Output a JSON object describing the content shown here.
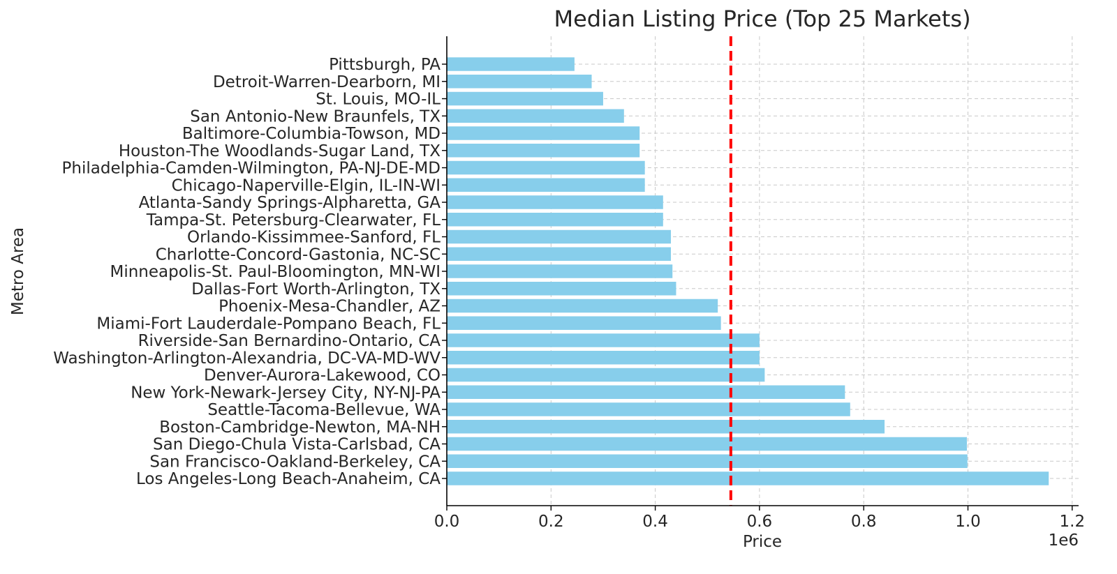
{
  "chart_data": {
    "type": "bar",
    "orientation": "horizontal",
    "title": "Median Listing Price (Top 25 Markets)",
    "xlabel": "Price",
    "ylabel": "Metro Area",
    "x_offset_label": "1e6",
    "xlim": [
      0,
      1.22
    ],
    "xticks": [
      "0.0",
      "0.2",
      "0.4",
      "0.6",
      "0.8",
      "1.0",
      "1.2"
    ],
    "grid": true,
    "bar_color": "#87CEEB",
    "reference_line": {
      "value": 0.545,
      "color": "#ff0000",
      "style": "dashed"
    },
    "categories": [
      "Los Angeles-Long Beach-Anaheim, CA",
      "San Francisco-Oakland-Berkeley, CA",
      "San Diego-Chula Vista-Carlsbad, CA",
      "Boston-Cambridge-Newton, MA-NH",
      "Seattle-Tacoma-Bellevue, WA",
      "New York-Newark-Jersey City, NY-NJ-PA",
      "Denver-Aurora-Lakewood, CO",
      "Washington-Arlington-Alexandria, DC-VA-MD-WV",
      "Riverside-San Bernardino-Ontario, CA",
      "Miami-Fort Lauderdale-Pompano Beach, FL",
      "Phoenix-Mesa-Chandler, AZ",
      "Dallas-Fort Worth-Arlington, TX",
      "Minneapolis-St. Paul-Bloomington, MN-WI",
      "Charlotte-Concord-Gastonia, NC-SC",
      "Orlando-Kissimmee-Sanford, FL",
      "Tampa-St. Petersburg-Clearwater, FL",
      "Atlanta-Sandy Springs-Alpharetta, GA",
      "Chicago-Naperville-Elgin, IL-IN-WI",
      "Philadelphia-Camden-Wilmington, PA-NJ-DE-MD",
      "Houston-The Woodlands-Sugar Land, TX",
      "Baltimore-Columbia-Towson, MD",
      "San Antonio-New Braunfels, TX",
      "St. Louis, MO-IL",
      "Detroit-Warren-Dearborn, MI",
      "Pittsburgh, PA"
    ],
    "values": [
      1.155,
      0.999,
      0.998,
      0.84,
      0.774,
      0.764,
      0.61,
      0.6,
      0.6,
      0.526,
      0.52,
      0.44,
      0.433,
      0.43,
      0.43,
      0.415,
      0.415,
      0.38,
      0.38,
      0.37,
      0.37,
      0.34,
      0.3,
      0.278,
      0.245
    ]
  }
}
